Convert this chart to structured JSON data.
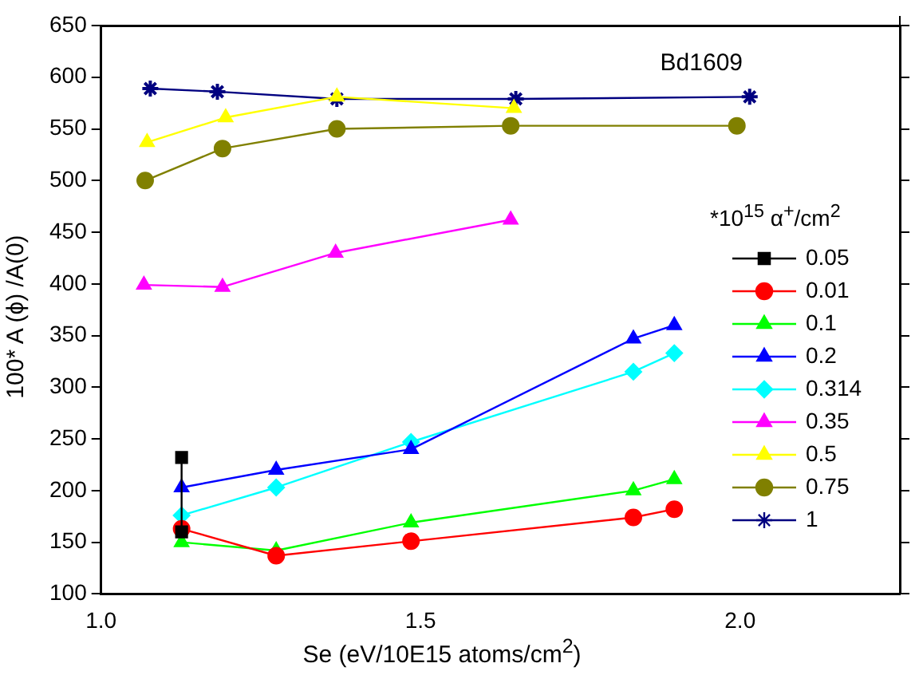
{
  "chart_data": {
    "type": "line",
    "xlabel": "Se (eV/10E15 atoms/cm$^{2}$)",
    "ylabel": "100* A (ϕ) /A(0)",
    "legend_title": "*10$^{15}$ α$^{+}$/cm$^{2}$",
    "annotations": [
      "Bd1609"
    ],
    "xlim": [
      1.0,
      2.25
    ],
    "xticks": [
      {
        "value": 1.0,
        "label": "1.0"
      },
      1.5,
      {
        "value": 2.0,
        "label": "2.0"
      }
    ],
    "ylim": [
      100,
      650
    ],
    "yticks": [
      100,
      150,
      200,
      250,
      300,
      350,
      400,
      450,
      500,
      550,
      600,
      650
    ],
    "grid": false,
    "legend": "right",
    "line_style": "solid",
    "series": [
      {
        "name": "0.05",
        "color": "#000000",
        "marker": "square",
        "x": [
          1.126,
          1.126
        ],
        "values": [
          232,
          160
        ]
      },
      {
        "name": "0.01",
        "color": "#ff0000",
        "marker": "circle",
        "x": [
          1.126,
          1.274,
          1.485,
          1.833,
          1.897
        ],
        "values": [
          163,
          137,
          151,
          174,
          182
        ]
      },
      {
        "name": "0.1",
        "color": "#00ff00",
        "marker": "triangle",
        "x": [
          1.126,
          1.274,
          1.485,
          1.833,
          1.897
        ],
        "values": [
          150,
          142,
          169,
          200,
          211
        ]
      },
      {
        "name": "0.2",
        "color": "#0000ff",
        "marker": "triangle",
        "x": [
          1.126,
          1.274,
          1.485,
          1.833,
          1.897
        ],
        "values": [
          203,
          220,
          240,
          347,
          360
        ]
      },
      {
        "name": "0.314",
        "color": "#00ffff",
        "marker": "diamond",
        "x": [
          1.126,
          1.274,
          1.485,
          1.833,
          1.897
        ],
        "values": [
          176,
          203,
          247,
          315,
          333
        ]
      },
      {
        "name": "0.35",
        "color": "#ff00ff",
        "marker": "triangle",
        "x": [
          1.067,
          1.19,
          1.367,
          1.641
        ],
        "values": [
          399,
          397,
          430,
          462
        ]
      },
      {
        "name": "0.5",
        "color": "#ffff00",
        "marker": "triangle",
        "x": [
          1.072,
          1.195,
          1.369,
          1.646
        ],
        "values": [
          537,
          561,
          581,
          570
        ]
      },
      {
        "name": "0.75",
        "color": "#808000",
        "marker": "circle",
        "x": [
          1.069,
          1.19,
          1.369,
          1.641,
          1.995
        ],
        "values": [
          500,
          531,
          550,
          553,
          553
        ]
      },
      {
        "name": "1",
        "color": "#000080",
        "marker": "cross",
        "x": [
          1.077,
          1.182,
          1.369,
          1.649,
          2.015
        ],
        "values": [
          589,
          586,
          579,
          579,
          581
        ]
      }
    ]
  }
}
